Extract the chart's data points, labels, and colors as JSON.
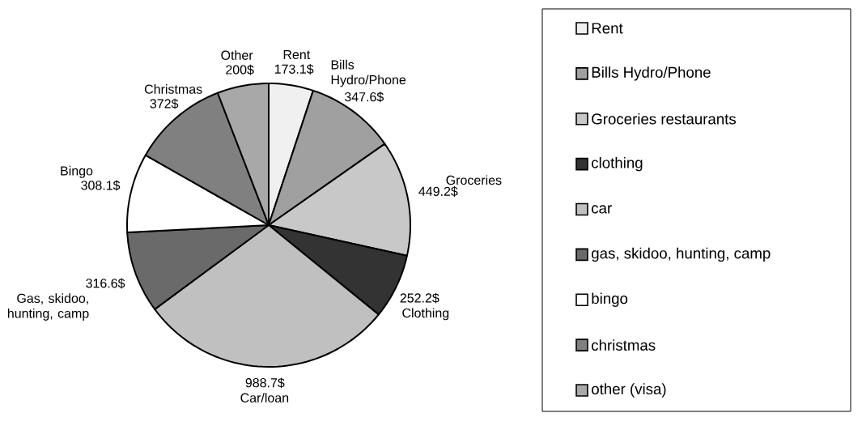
{
  "chart_data": {
    "type": "pie",
    "categories": [
      "Rent",
      "Bills Hydro/Phone",
      "Groceries restaurants",
      "clothing",
      "car",
      "gas, skidoo, hunting, camp",
      "bingo",
      "christmas",
      "other (visa)"
    ],
    "values": [
      173.1,
      347.6,
      449.2,
      252.2,
      988.7,
      316.6,
      308.1,
      372,
      200
    ],
    "value_labels": [
      "173.1$",
      "347.6$",
      "449.2$",
      "252.2$",
      "988.7$",
      "316.6$",
      "308.1$",
      "372$",
      "200$"
    ],
    "colors": [
      "#f0f0f0",
      "#a0a0a0",
      "#c8c8c8",
      "#333333",
      "#c0c0c0",
      "#6a6a6a",
      "#ffffff",
      "#808080",
      "#a8a8a8"
    ],
    "annotations": [
      "Rent",
      "Bills Hydro/Phone",
      "Groceries",
      "Clothing",
      "Car/loan",
      "Gas, skidoo, hunting, camp",
      "Bingo",
      "Christmas",
      "Other"
    ],
    "legend": "right"
  }
}
